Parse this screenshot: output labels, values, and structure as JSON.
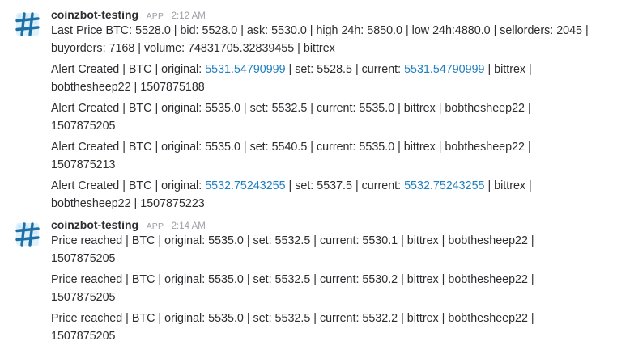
{
  "groups": [
    {
      "author": "coinzbot-testing",
      "badge": "APP",
      "time": "2:12 AM",
      "messages": [
        {
          "l1": "Last Price BTC: 5528.0 | bid: 5528.0 | ask: 5530.0 | high 24h: 5850.0 | low 24h:4880.0 | sellorders: 2045 |",
          "l2": "buyorders: 7168 | volume: 74831705.32839455 | bittrex"
        },
        {
          "l1_a": "Alert Created | BTC | original: ",
          "l1_link1": "5531.54790999",
          "l1_b": " | set: 5528.5 | current: ",
          "l1_link2": "5531.54790999",
          "l1_c": " | bittrex |",
          "l2": "bobthesheep22 | 1507875188"
        },
        {
          "l1": "Alert Created | BTC | original: 5535.0 | set: 5532.5 | current: 5535.0 | bittrex | bobthesheep22 |",
          "l2": "1507875205"
        },
        {
          "l1": "Alert Created | BTC | original: 5535.0 | set: 5540.5 | current: 5535.0 | bittrex | bobthesheep22 |",
          "l2": "1507875213"
        },
        {
          "l1_a": "Alert Created | BTC | original: ",
          "l1_link1": "5532.75243255",
          "l1_b": " | set: 5537.5 | current: ",
          "l1_link2": "5532.75243255",
          "l1_c": " | bittrex |",
          "l2": "bobthesheep22 | 1507875223"
        }
      ]
    },
    {
      "author": "coinzbot-testing",
      "badge": "APP",
      "time": "2:14 AM",
      "messages": [
        {
          "l1": "Price reached | BTC | original: 5535.0 | set: 5532.5 | current: 5530.1 | bittrex | bobthesheep22 |",
          "l2": "1507875205"
        },
        {
          "l1": "Price reached | BTC | original: 5535.0 | set: 5532.5 | current: 5530.2 | bittrex | bobthesheep22 |",
          "l2": "1507875205"
        },
        {
          "l1": "Price reached | BTC | original: 5535.0 | set: 5532.5 | current: 5532.2 | bittrex | bobthesheep22 |",
          "l2": "1507875205"
        }
      ]
    }
  ],
  "colors": {
    "link": "#1f7fbf",
    "avatar_bg": "#dff1fb",
    "avatar_hash": "#1d6fa5"
  },
  "icons": {
    "avatar": "hash-avatar-icon"
  }
}
